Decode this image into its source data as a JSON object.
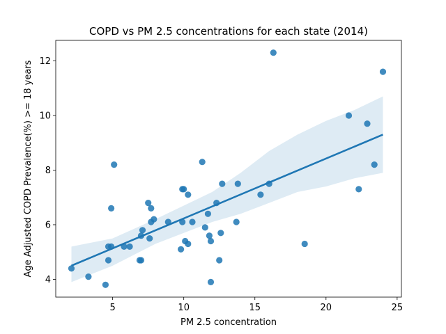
{
  "chart_data": {
    "type": "scatter",
    "title": "COPD vs PM 2.5 concentrations for each state (2014)",
    "xlabel": "PM 2.5 concentration",
    "ylabel": "Age Adjusted COPD Prevalence(%) >= 18 years",
    "xlim": [
      1.0,
      25.3
    ],
    "ylim": [
      3.35,
      12.75
    ],
    "xticks": [
      5,
      10,
      15,
      20,
      25
    ],
    "yticks": [
      4,
      6,
      8,
      10,
      12
    ],
    "grid": false,
    "colors": {
      "points": "#1f77b4",
      "line": "#1f77b4",
      "band": "#1f77b4"
    },
    "points": [
      {
        "x": 2.1,
        "y": 4.4
      },
      {
        "x": 3.3,
        "y": 4.1
      },
      {
        "x": 4.5,
        "y": 3.8
      },
      {
        "x": 4.7,
        "y": 4.7
      },
      {
        "x": 4.7,
        "y": 5.2
      },
      {
        "x": 4.9,
        "y": 5.2
      },
      {
        "x": 4.9,
        "y": 6.6
      },
      {
        "x": 5.1,
        "y": 8.2
      },
      {
        "x": 5.8,
        "y": 5.2
      },
      {
        "x": 6.2,
        "y": 5.2
      },
      {
        "x": 6.9,
        "y": 4.7
      },
      {
        "x": 7.0,
        "y": 4.7
      },
      {
        "x": 7.0,
        "y": 5.6
      },
      {
        "x": 7.1,
        "y": 5.8
      },
      {
        "x": 7.5,
        "y": 6.8
      },
      {
        "x": 7.6,
        "y": 5.5
      },
      {
        "x": 7.7,
        "y": 6.1
      },
      {
        "x": 7.7,
        "y": 6.6
      },
      {
        "x": 7.9,
        "y": 6.2
      },
      {
        "x": 8.9,
        "y": 6.1
      },
      {
        "x": 9.8,
        "y": 5.1
      },
      {
        "x": 9.9,
        "y": 6.1
      },
      {
        "x": 9.9,
        "y": 7.3
      },
      {
        "x": 10.0,
        "y": 7.3
      },
      {
        "x": 10.1,
        "y": 5.4
      },
      {
        "x": 10.3,
        "y": 5.3
      },
      {
        "x": 10.3,
        "y": 7.1
      },
      {
        "x": 10.6,
        "y": 6.1
      },
      {
        "x": 11.3,
        "y": 8.3
      },
      {
        "x": 11.5,
        "y": 5.9
      },
      {
        "x": 11.7,
        "y": 6.4
      },
      {
        "x": 11.8,
        "y": 5.6
      },
      {
        "x": 11.9,
        "y": 5.4
      },
      {
        "x": 11.9,
        "y": 3.9
      },
      {
        "x": 12.3,
        "y": 6.8
      },
      {
        "x": 12.5,
        "y": 4.7
      },
      {
        "x": 12.6,
        "y": 5.7
      },
      {
        "x": 12.7,
        "y": 7.5
      },
      {
        "x": 13.7,
        "y": 6.1
      },
      {
        "x": 13.8,
        "y": 7.5
      },
      {
        "x": 15.4,
        "y": 7.1
      },
      {
        "x": 16.0,
        "y": 7.5
      },
      {
        "x": 16.3,
        "y": 12.3
      },
      {
        "x": 18.5,
        "y": 5.3
      },
      {
        "x": 21.6,
        "y": 10.0
      },
      {
        "x": 22.3,
        "y": 7.3
      },
      {
        "x": 22.9,
        "y": 9.7
      },
      {
        "x": 23.4,
        "y": 8.2
      },
      {
        "x": 24.0,
        "y": 11.6
      }
    ],
    "regression_line": [
      {
        "x": 2.1,
        "y": 4.5
      },
      {
        "x": 24.0,
        "y": 9.3
      }
    ],
    "confidence_band": {
      "upper": [
        {
          "x": 2.1,
          "y": 5.2
        },
        {
          "x": 5.0,
          "y": 5.5
        },
        {
          "x": 8.0,
          "y": 6.2
        },
        {
          "x": 10.0,
          "y": 6.7
        },
        {
          "x": 12.0,
          "y": 7.2
        },
        {
          "x": 14.0,
          "y": 7.9
        },
        {
          "x": 16.0,
          "y": 8.7
        },
        {
          "x": 18.0,
          "y": 9.3
        },
        {
          "x": 20.0,
          "y": 9.8
        },
        {
          "x": 22.0,
          "y": 10.2
        },
        {
          "x": 24.0,
          "y": 10.7
        }
      ],
      "lower": [
        {
          "x": 24.0,
          "y": 7.9
        },
        {
          "x": 22.0,
          "y": 7.7
        },
        {
          "x": 20.0,
          "y": 7.4
        },
        {
          "x": 18.0,
          "y": 7.2
        },
        {
          "x": 16.0,
          "y": 6.8
        },
        {
          "x": 14.0,
          "y": 6.4
        },
        {
          "x": 12.0,
          "y": 6.1
        },
        {
          "x": 10.0,
          "y": 5.7
        },
        {
          "x": 8.0,
          "y": 5.3
        },
        {
          "x": 5.0,
          "y": 4.5
        },
        {
          "x": 2.1,
          "y": 3.9
        }
      ]
    }
  }
}
